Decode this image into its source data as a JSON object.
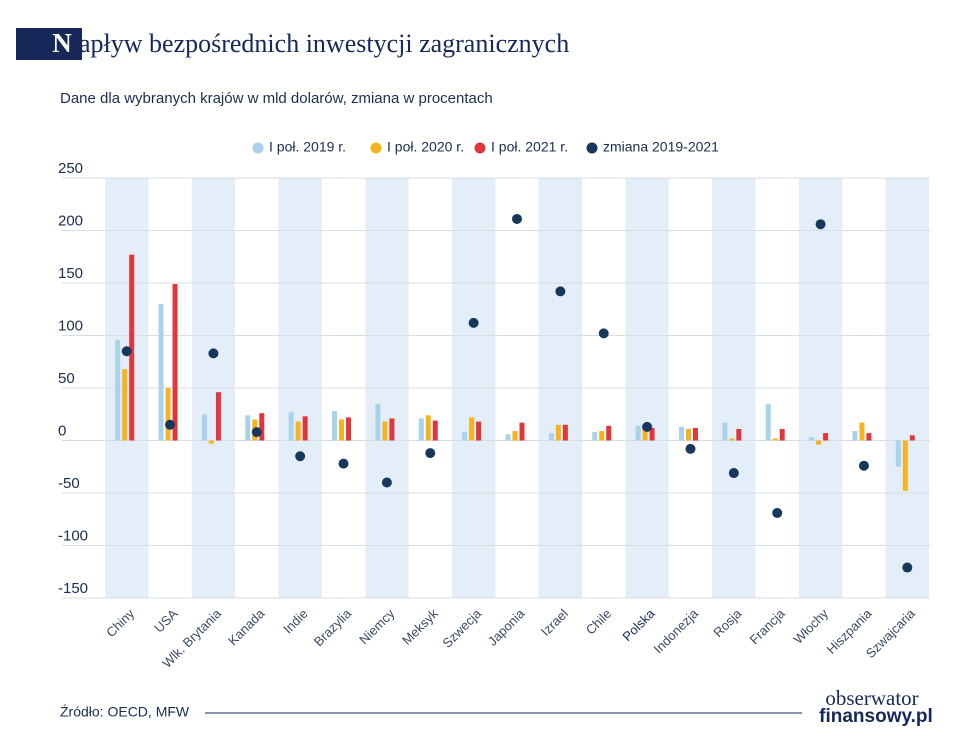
{
  "chart_data": {
    "type": "bar",
    "title_initial": "N",
    "title": "apływ bezpośrednich inwestycji zagranicznych",
    "subtitle": "Dane dla wybranych krajów w mld dolarów, zmiana w procentach",
    "categories": [
      "Chiny",
      "USA",
      "Wlk. Brytania",
      "Kanada",
      "Indie",
      "Brazylia",
      "Niemcy",
      "Meksyk",
      "Szwecja",
      "Japonia",
      "Izrael",
      "Chile",
      "Polska",
      "Indonezja",
      "Rosja",
      "Francja",
      "Włochy",
      "Hiszpania",
      "Szwajcaria"
    ],
    "series": [
      {
        "name": "I poł. 2019 r.",
        "color": "#a9d2ec",
        "mark": "bar",
        "values": [
          96,
          130,
          25,
          24,
          27,
          28,
          35,
          21,
          8,
          6,
          7,
          8,
          14,
          13,
          17,
          35,
          3,
          9,
          -25
        ]
      },
      {
        "name": "I poł. 2020 r.",
        "color": "#f6b31f",
        "mark": "bar",
        "values": [
          68,
          50,
          -3,
          20,
          18,
          20,
          18,
          24,
          22,
          9,
          15,
          9,
          11,
          11,
          2,
          2,
          -4,
          17,
          -48
        ]
      },
      {
        "name": "I poł. 2021 r.",
        "color": "#e2363d",
        "mark": "bar",
        "values": [
          177,
          149,
          46,
          26,
          23,
          22,
          21,
          19,
          18,
          17,
          15,
          14,
          12,
          12,
          11,
          11,
          7,
          7,
          5
        ]
      },
      {
        "name": "zmiana 2019-2021",
        "color": "#17385c",
        "mark": "dot",
        "values": [
          85,
          15,
          83,
          8,
          -15,
          -22,
          -40,
          -12,
          112,
          211,
          142,
          102,
          13,
          -8,
          -31,
          -69,
          206,
          -24,
          -121
        ]
      }
    ],
    "ylim": [
      -150,
      250
    ],
    "yticks": [
      -150,
      -100,
      -50,
      0,
      50,
      100,
      150,
      200,
      250
    ],
    "grid": true,
    "band_color": "#e3eef8",
    "highlight": "Polska",
    "source": "Źródło:  OECD, MFW"
  },
  "logo": {
    "line1": "obserwator",
    "line2": "finansowy.pl"
  }
}
